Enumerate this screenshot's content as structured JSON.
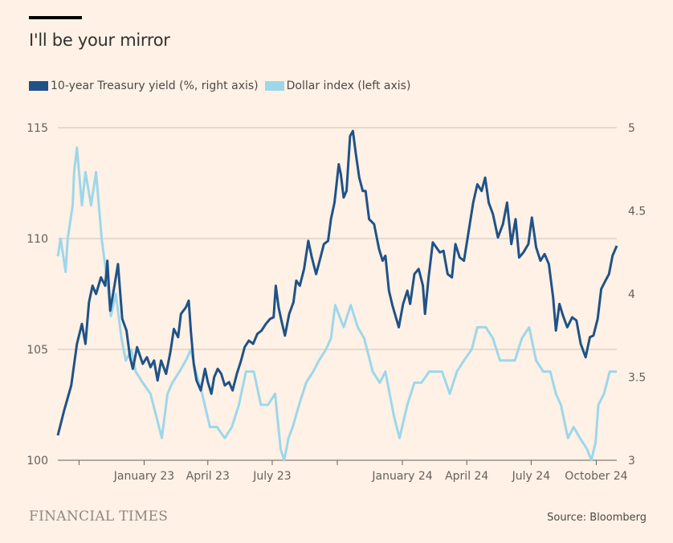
{
  "title": "I'll be your mirror",
  "source": "Source: Bloomberg",
  "brand": "FINANCIAL TIMES",
  "colors": {
    "background": "#fff1e5",
    "treasury": "#1f5287",
    "dollar": "#9dd7ea",
    "grid": "#ccc1b7"
  },
  "chart_data": {
    "type": "line",
    "title": "I'll be your mirror",
    "x_ticks": [
      {
        "date": "2022-10-01",
        "label": ""
      },
      {
        "date": "2023-01-01",
        "label": "January 23"
      },
      {
        "date": "2023-04-01",
        "label": "April 23"
      },
      {
        "date": "2023-07-01",
        "label": "July 23"
      },
      {
        "date": "2023-10-01",
        "label": ""
      },
      {
        "date": "2024-01-01",
        "label": "January 24"
      },
      {
        "date": "2024-04-01",
        "label": "April 24"
      },
      {
        "date": "2024-07-01",
        "label": "July 24"
      },
      {
        "date": "2024-10-01",
        "label": "October 24"
      }
    ],
    "x_range": [
      "2022-09-01",
      "2024-10-30"
    ],
    "left_axis": {
      "label": "",
      "range": [
        100,
        115
      ],
      "ticks": [
        100,
        105,
        110,
        115
      ]
    },
    "right_axis": {
      "label": "",
      "range": [
        3,
        5
      ],
      "ticks": [
        "3",
        "3.5",
        "4",
        "4.5",
        "5"
      ]
    },
    "grid": true,
    "legend": "top-left",
    "series": [
      {
        "name": "10-year Treasury yield (%, right axis)",
        "axis": "right",
        "points": [
          [
            "2022-09-01",
            3.15
          ],
          [
            "2022-09-10",
            3.3
          ],
          [
            "2022-09-20",
            3.45
          ],
          [
            "2022-09-28",
            3.7
          ],
          [
            "2022-10-05",
            3.82
          ],
          [
            "2022-10-10",
            3.7
          ],
          [
            "2022-10-15",
            3.95
          ],
          [
            "2022-10-20",
            4.05
          ],
          [
            "2022-10-25",
            4.0
          ],
          [
            "2022-11-01",
            4.1
          ],
          [
            "2022-11-07",
            4.05
          ],
          [
            "2022-11-10",
            4.2
          ],
          [
            "2022-11-14",
            3.9
          ],
          [
            "2022-11-20",
            4.05
          ],
          [
            "2022-11-25",
            4.18
          ],
          [
            "2022-12-01",
            3.85
          ],
          [
            "2022-12-07",
            3.78
          ],
          [
            "2022-12-12",
            3.62
          ],
          [
            "2022-12-16",
            3.55
          ],
          [
            "2022-12-22",
            3.68
          ],
          [
            "2022-12-30",
            3.58
          ],
          [
            "2023-01-05",
            3.62
          ],
          [
            "2023-01-10",
            3.56
          ],
          [
            "2023-01-15",
            3.6
          ],
          [
            "2023-01-20",
            3.48
          ],
          [
            "2023-01-25",
            3.6
          ],
          [
            "2023-02-01",
            3.52
          ],
          [
            "2023-02-07",
            3.65
          ],
          [
            "2023-02-12",
            3.79
          ],
          [
            "2023-02-18",
            3.74
          ],
          [
            "2023-02-22",
            3.88
          ],
          [
            "2023-03-01",
            3.92
          ],
          [
            "2023-03-05",
            3.96
          ],
          [
            "2023-03-08",
            3.78
          ],
          [
            "2023-03-12",
            3.58
          ],
          [
            "2023-03-16",
            3.48
          ],
          [
            "2023-03-22",
            3.42
          ],
          [
            "2023-03-28",
            3.55
          ],
          [
            "2023-04-01",
            3.47
          ],
          [
            "2023-04-06",
            3.4
          ],
          [
            "2023-04-10",
            3.5
          ],
          [
            "2023-04-15",
            3.55
          ],
          [
            "2023-04-20",
            3.52
          ],
          [
            "2023-04-25",
            3.45
          ],
          [
            "2023-05-01",
            3.47
          ],
          [
            "2023-05-06",
            3.42
          ],
          [
            "2023-05-12",
            3.52
          ],
          [
            "2023-05-18",
            3.6
          ],
          [
            "2023-05-23",
            3.68
          ],
          [
            "2023-05-29",
            3.72
          ],
          [
            "2023-06-04",
            3.7
          ],
          [
            "2023-06-10",
            3.76
          ],
          [
            "2023-06-16",
            3.78
          ],
          [
            "2023-06-22",
            3.82
          ],
          [
            "2023-06-28",
            3.85
          ],
          [
            "2023-07-03",
            3.86
          ],
          [
            "2023-07-06",
            4.05
          ],
          [
            "2023-07-10",
            3.92
          ],
          [
            "2023-07-14",
            3.84
          ],
          [
            "2023-07-19",
            3.75
          ],
          [
            "2023-07-25",
            3.88
          ],
          [
            "2023-07-31",
            3.95
          ],
          [
            "2023-08-04",
            4.08
          ],
          [
            "2023-08-09",
            4.05
          ],
          [
            "2023-08-15",
            4.15
          ],
          [
            "2023-08-21",
            4.32
          ],
          [
            "2023-08-26",
            4.22
          ],
          [
            "2023-09-01",
            4.12
          ],
          [
            "2023-09-06",
            4.2
          ],
          [
            "2023-09-12",
            4.3
          ],
          [
            "2023-09-18",
            4.32
          ],
          [
            "2023-09-22",
            4.45
          ],
          [
            "2023-09-27",
            4.55
          ],
          [
            "2023-10-03",
            4.78
          ],
          [
            "2023-10-06",
            4.72
          ],
          [
            "2023-10-10",
            4.58
          ],
          [
            "2023-10-14",
            4.62
          ],
          [
            "2023-10-19",
            4.95
          ],
          [
            "2023-10-23",
            4.98
          ],
          [
            "2023-10-27",
            4.85
          ],
          [
            "2023-11-01",
            4.7
          ],
          [
            "2023-11-06",
            4.62
          ],
          [
            "2023-11-10",
            4.62
          ],
          [
            "2023-11-15",
            4.45
          ],
          [
            "2023-11-22",
            4.42
          ],
          [
            "2023-11-29",
            4.27
          ],
          [
            "2023-12-04",
            4.2
          ],
          [
            "2023-12-08",
            4.23
          ],
          [
            "2023-12-13",
            4.02
          ],
          [
            "2023-12-18",
            3.93
          ],
          [
            "2023-12-27",
            3.8
          ],
          [
            "2024-01-02",
            3.94
          ],
          [
            "2024-01-08",
            4.02
          ],
          [
            "2024-01-12",
            3.94
          ],
          [
            "2024-01-18",
            4.12
          ],
          [
            "2024-01-24",
            4.15
          ],
          [
            "2024-01-30",
            4.05
          ],
          [
            "2024-02-02",
            3.88
          ],
          [
            "2024-02-07",
            4.1
          ],
          [
            "2024-02-13",
            4.31
          ],
          [
            "2024-02-18",
            4.28
          ],
          [
            "2024-02-23",
            4.25
          ],
          [
            "2024-02-28",
            4.26
          ],
          [
            "2024-03-05",
            4.12
          ],
          [
            "2024-03-11",
            4.1
          ],
          [
            "2024-03-16",
            4.3
          ],
          [
            "2024-03-22",
            4.22
          ],
          [
            "2024-03-28",
            4.2
          ],
          [
            "2024-04-03",
            4.36
          ],
          [
            "2024-04-10",
            4.55
          ],
          [
            "2024-04-16",
            4.66
          ],
          [
            "2024-04-22",
            4.62
          ],
          [
            "2024-04-27",
            4.7
          ],
          [
            "2024-05-02",
            4.55
          ],
          [
            "2024-05-08",
            4.48
          ],
          [
            "2024-05-15",
            4.34
          ],
          [
            "2024-05-22",
            4.42
          ],
          [
            "2024-05-28",
            4.55
          ],
          [
            "2024-06-03",
            4.3
          ],
          [
            "2024-06-09",
            4.45
          ],
          [
            "2024-06-14",
            4.22
          ],
          [
            "2024-06-20",
            4.25
          ],
          [
            "2024-06-27",
            4.3
          ],
          [
            "2024-07-02",
            4.46
          ],
          [
            "2024-07-08",
            4.28
          ],
          [
            "2024-07-14",
            4.2
          ],
          [
            "2024-07-20",
            4.24
          ],
          [
            "2024-07-26",
            4.18
          ],
          [
            "2024-08-01",
            3.98
          ],
          [
            "2024-08-05",
            3.78
          ],
          [
            "2024-08-10",
            3.94
          ],
          [
            "2024-08-15",
            3.87
          ],
          [
            "2024-08-21",
            3.8
          ],
          [
            "2024-08-28",
            3.86
          ],
          [
            "2024-09-03",
            3.84
          ],
          [
            "2024-09-09",
            3.7
          ],
          [
            "2024-09-16",
            3.62
          ],
          [
            "2024-09-22",
            3.74
          ],
          [
            "2024-09-27",
            3.75
          ],
          [
            "2024-10-03",
            3.85
          ],
          [
            "2024-10-08",
            4.03
          ],
          [
            "2024-10-14",
            4.08
          ],
          [
            "2024-10-19",
            4.12
          ],
          [
            "2024-10-24",
            4.23
          ],
          [
            "2024-10-30",
            4.29
          ]
        ]
      },
      {
        "name": "Dollar index (left axis)",
        "axis": "left",
        "points": [
          [
            "2022-09-01",
            109.2
          ],
          [
            "2022-09-05",
            110
          ],
          [
            "2022-09-12",
            108.5
          ],
          [
            "2022-09-15",
            110
          ],
          [
            "2022-09-22",
            111.5
          ],
          [
            "2022-09-24",
            113
          ],
          [
            "2022-09-28",
            114.1
          ],
          [
            "2022-10-05",
            111.5
          ],
          [
            "2022-10-10",
            113
          ],
          [
            "2022-10-18",
            111.5
          ],
          [
            "2022-10-25",
            113
          ],
          [
            "2022-11-02",
            110
          ],
          [
            "2022-11-10",
            108
          ],
          [
            "2022-11-15",
            106.5
          ],
          [
            "2022-11-22",
            107.5
          ],
          [
            "2022-11-30",
            105.5
          ],
          [
            "2022-12-06",
            104.5
          ],
          [
            "2022-12-14",
            105
          ],
          [
            "2022-12-20",
            104
          ],
          [
            "2022-12-30",
            103.5
          ],
          [
            "2023-01-10",
            103
          ],
          [
            "2023-01-18",
            102
          ],
          [
            "2023-01-26",
            101
          ],
          [
            "2023-02-03",
            103
          ],
          [
            "2023-02-10",
            103.5
          ],
          [
            "2023-02-20",
            104
          ],
          [
            "2023-03-01",
            104.5
          ],
          [
            "2023-03-08",
            105
          ],
          [
            "2023-03-15",
            104
          ],
          [
            "2023-03-24",
            103
          ],
          [
            "2023-04-04",
            101.5
          ],
          [
            "2023-04-14",
            101.5
          ],
          [
            "2023-04-25",
            101
          ],
          [
            "2023-05-05",
            101.5
          ],
          [
            "2023-05-15",
            102.5
          ],
          [
            "2023-05-25",
            104
          ],
          [
            "2023-06-05",
            104
          ],
          [
            "2023-06-15",
            102.5
          ],
          [
            "2023-06-25",
            102.5
          ],
          [
            "2023-07-05",
            103
          ],
          [
            "2023-07-13",
            100.5
          ],
          [
            "2023-07-18",
            100
          ],
          [
            "2023-07-24",
            101
          ],
          [
            "2023-07-30",
            101.5
          ],
          [
            "2023-08-08",
            102.5
          ],
          [
            "2023-08-18",
            103.5
          ],
          [
            "2023-08-28",
            104
          ],
          [
            "2023-09-05",
            104.5
          ],
          [
            "2023-09-15",
            105
          ],
          [
            "2023-09-22",
            105.5
          ],
          [
            "2023-09-28",
            107
          ],
          [
            "2023-10-10",
            106
          ],
          [
            "2023-10-20",
            107
          ],
          [
            "2023-10-30",
            106
          ],
          [
            "2023-11-08",
            105.5
          ],
          [
            "2023-11-20",
            104
          ],
          [
            "2023-11-30",
            103.5
          ],
          [
            "2023-12-08",
            104
          ],
          [
            "2023-12-20",
            102
          ],
          [
            "2023-12-28",
            101
          ],
          [
            "2024-01-08",
            102.5
          ],
          [
            "2024-01-18",
            103.5
          ],
          [
            "2024-01-28",
            103.5
          ],
          [
            "2024-02-08",
            104
          ],
          [
            "2024-02-16",
            104
          ],
          [
            "2024-02-26",
            104
          ],
          [
            "2024-03-08",
            103
          ],
          [
            "2024-03-18",
            104
          ],
          [
            "2024-03-28",
            104.5
          ],
          [
            "2024-04-08",
            105
          ],
          [
            "2024-04-16",
            106
          ],
          [
            "2024-04-28",
            106
          ],
          [
            "2024-05-08",
            105.5
          ],
          [
            "2024-05-18",
            104.5
          ],
          [
            "2024-05-28",
            104.5
          ],
          [
            "2024-06-08",
            104.5
          ],
          [
            "2024-06-18",
            105.5
          ],
          [
            "2024-06-28",
            106
          ],
          [
            "2024-07-08",
            104.5
          ],
          [
            "2024-07-18",
            104
          ],
          [
            "2024-07-28",
            104
          ],
          [
            "2024-08-05",
            103
          ],
          [
            "2024-08-12",
            102.5
          ],
          [
            "2024-08-22",
            101
          ],
          [
            "2024-08-30",
            101.5
          ],
          [
            "2024-09-08",
            101
          ],
          [
            "2024-09-18",
            100.5
          ],
          [
            "2024-09-24",
            100
          ],
          [
            "2024-09-30",
            100.8
          ],
          [
            "2024-10-04",
            102.5
          ],
          [
            "2024-10-12",
            103
          ],
          [
            "2024-10-20",
            104
          ],
          [
            "2024-10-30",
            104
          ]
        ]
      }
    ]
  }
}
